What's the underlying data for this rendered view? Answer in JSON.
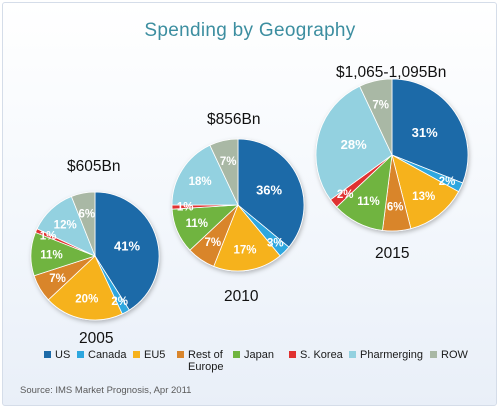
{
  "title": "Spending by Geography",
  "source": "Source: IMS Market Prognosis, Apr 2011",
  "colors": {
    "US": "#1d6aa8",
    "Canada": "#2ea7df",
    "EU5": "#f6b21d",
    "Rest of Europe": "#d9852c",
    "Japan": "#6fb43f",
    "S. Korea": "#e03131",
    "Pharmerging": "#93d1e0",
    "ROW": "#a9b8a5"
  },
  "chart_data": {
    "type": "pie",
    "title": "Spending by Geography",
    "categories": [
      "US",
      "Canada",
      "EU5",
      "Rest of Europe",
      "Japan",
      "S. Korea",
      "Pharmerging",
      "ROW"
    ],
    "pies": [
      {
        "year": "2005",
        "total": "$605Bn",
        "values": [
          41,
          2,
          20,
          7,
          11,
          1,
          12,
          6
        ],
        "labels": [
          "41%",
          "2%",
          "20%",
          "7%",
          "11%",
          "1%",
          "12%",
          "6%"
        ]
      },
      {
        "year": "2010",
        "total": "$856Bn",
        "values": [
          36,
          3,
          17,
          7,
          11,
          1,
          18,
          7
        ],
        "labels": [
          "36%",
          "3%",
          "17%",
          "7%",
          "11%",
          "1%",
          "18%",
          "7%"
        ]
      },
      {
        "year": "2015",
        "total": "$1,065-1,095Bn",
        "values": [
          31,
          2,
          13,
          6,
          11,
          2,
          28,
          7
        ],
        "labels": [
          "31%",
          "2%",
          "13%",
          "6%",
          "11%",
          "2%",
          "28%",
          "7%"
        ]
      }
    ],
    "legend": {
      "placement": "bottom",
      "items": [
        "US",
        "Canada",
        "EU5",
        "Rest of Europe",
        "Japan",
        "S. Korea",
        "Pharmerging",
        "ROW"
      ]
    }
  }
}
